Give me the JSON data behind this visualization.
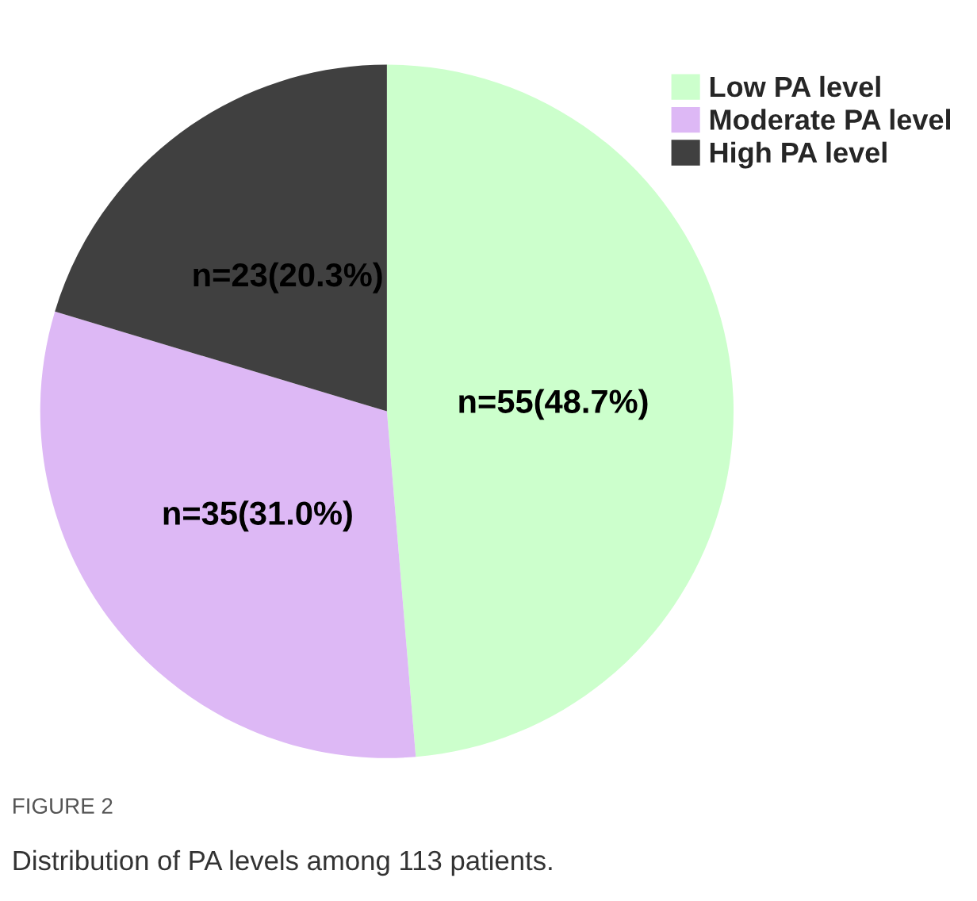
{
  "chart_data": {
    "type": "pie",
    "categories": [
      "Low PA level",
      "Moderate PA level",
      "High PA level"
    ],
    "values": [
      55,
      35,
      23
    ],
    "value_labels": [
      "n=55(48.7%)",
      "n=35(31.0%)",
      "n=23(20.3%)"
    ],
    "colors": [
      "#ccffcc",
      "#ddb8f5",
      "#404040"
    ],
    "legend": "top right",
    "annotations": [
      "FIGURE 2",
      "Distribution of PA levels among 113 patients."
    ]
  }
}
